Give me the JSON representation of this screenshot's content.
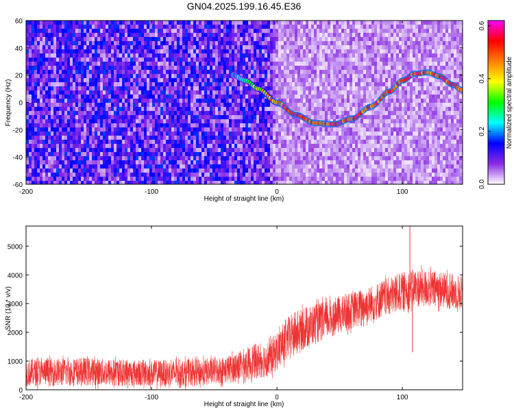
{
  "chart_data": [
    {
      "type": "heatmap",
      "title": "GN04.2025.199.16.45.E36",
      "xlabel": "Height of straight line (km)",
      "ylabel": "Frequency (Hz)",
      "xlim": [
        -200,
        148
      ],
      "ylim": [
        -60,
        60
      ],
      "xticks": [
        "-200",
        "-100",
        "0",
        "100"
      ],
      "yticks": [
        "-60",
        "-40",
        "-20",
        "0",
        "20",
        "40",
        "60"
      ],
      "colorbar": {
        "label": "Normalized spectral amplitude",
        "range": [
          0.0,
          0.62
        ],
        "ticks": [
          "0.0",
          "0.2",
          "0.4",
          "0.6"
        ],
        "colors": [
          "#ffffff",
          "#8a2be2",
          "#0000ff",
          "#00ffff",
          "#00ff00",
          "#ffff00",
          "#ff8000",
          "#ff0000",
          "#ff00ff"
        ]
      },
      "background_amplitude": {
        "x_below_-10": 0.1,
        "x_above_0": 0.04
      },
      "ridge": {
        "amplitude": 0.55,
        "points": [
          {
            "x": -35,
            "y": 20
          },
          {
            "x": -25,
            "y": 16
          },
          {
            "x": -15,
            "y": 10
          },
          {
            "x": 0,
            "y": 0
          },
          {
            "x": 15,
            "y": -9
          },
          {
            "x": 30,
            "y": -15
          },
          {
            "x": 45,
            "y": -16
          },
          {
            "x": 60,
            "y": -12
          },
          {
            "x": 75,
            "y": -3
          },
          {
            "x": 90,
            "y": 8
          },
          {
            "x": 100,
            "y": 16
          },
          {
            "x": 110,
            "y": 21
          },
          {
            "x": 120,
            "y": 22
          },
          {
            "x": 130,
            "y": 19
          },
          {
            "x": 140,
            "y": 13
          },
          {
            "x": 148,
            "y": 9
          }
        ]
      }
    },
    {
      "type": "line",
      "xlabel": "Height of straight line (km)",
      "ylabel": "SNR (10 * v/v)",
      "xlim": [
        -200,
        148
      ],
      "ylim": [
        0,
        5700
      ],
      "xticks": [
        "-200",
        "-100",
        "0",
        "100"
      ],
      "yticks": [
        "0",
        "1000",
        "2000",
        "3000",
        "4000",
        "5000"
      ],
      "series": [
        {
          "color": "#ee3333",
          "envelope": [
            {
              "x": -200,
              "low": 0,
              "high": 1200
            },
            {
              "x": -150,
              "low": 0,
              "high": 1250
            },
            {
              "x": -100,
              "low": 0,
              "high": 1150
            },
            {
              "x": -60,
              "low": 0,
              "high": 1200
            },
            {
              "x": -40,
              "low": 100,
              "high": 1300
            },
            {
              "x": -20,
              "low": 200,
              "high": 1700
            },
            {
              "x": -5,
              "low": 300,
              "high": 1900
            },
            {
              "x": 0,
              "low": 500,
              "high": 2200
            },
            {
              "x": 10,
              "low": 900,
              "high": 2800
            },
            {
              "x": 25,
              "low": 1300,
              "high": 3100
            },
            {
              "x": 50,
              "low": 1800,
              "high": 3400
            },
            {
              "x": 75,
              "low": 2200,
              "high": 3800
            },
            {
              "x": 95,
              "low": 2500,
              "high": 4200
            },
            {
              "x": 110,
              "low": 2700,
              "high": 4400
            },
            {
              "x": 130,
              "low": 2700,
              "high": 4300
            },
            {
              "x": 148,
              "low": 2600,
              "high": 4100
            }
          ],
          "spikes": [
            {
              "x": 106,
              "value": 5700
            },
            {
              "x": 108,
              "value": 1300
            }
          ]
        }
      ]
    }
  ]
}
